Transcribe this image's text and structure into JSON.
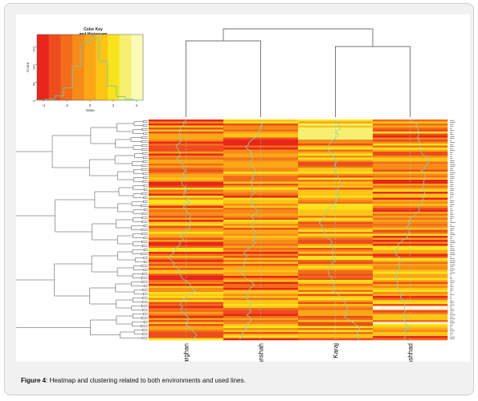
{
  "caption": {
    "label": "Figure 4",
    "text": ": Heatmap and clustering related to both environments and used lines."
  },
  "chart_data": {
    "type": "heatmap",
    "columns": [
      "Zarghan",
      "rmanshah",
      "Karaj",
      "Mashhad"
    ],
    "color_key": {
      "title": "Color Key",
      "subtitle": "and Histogram",
      "xlabel": "Value",
      "ylabel": "Count",
      "x_ticks": [
        "-4",
        "-2",
        "0",
        "2",
        "4"
      ],
      "y_ticks": [
        "0",
        "50",
        "100",
        "150"
      ],
      "xlim": [
        -5,
        5
      ],
      "ylim": [
        0,
        175
      ],
      "colors": [
        "#e8261c",
        "#ed4d1e",
        "#f26c1c",
        "#f78b19",
        "#fba716",
        "#fdc516",
        "#f8e31c",
        "#f6f072",
        "#fafbb7"
      ],
      "histogram_counts": [
        0,
        3,
        12,
        35,
        95,
        160,
        175,
        110,
        40,
        10,
        3,
        0
      ],
      "density_color": "#79c99a"
    },
    "row_count": 110
  }
}
